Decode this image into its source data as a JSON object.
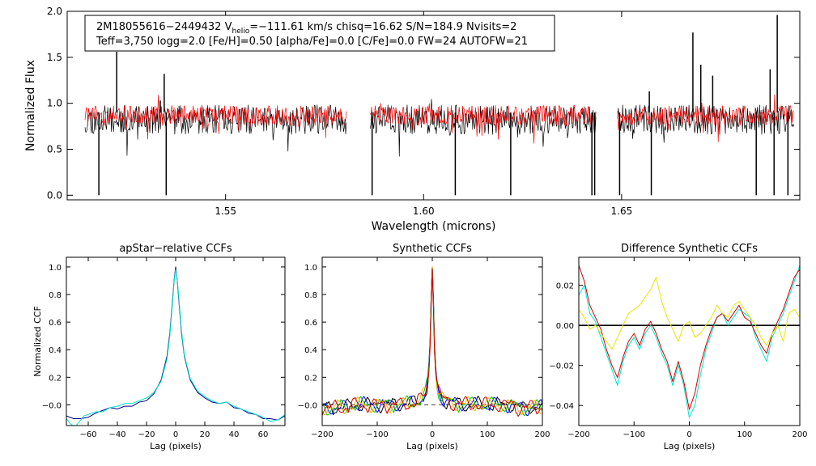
{
  "chart_data": [
    {
      "id": "spectrum",
      "type": "line",
      "title": "",
      "xlabel": "Wavelength (microns)",
      "ylabel": "Normalized Flux",
      "xlim": [
        1.51,
        1.695
      ],
      "ylim": [
        -0.05,
        2.0
      ],
      "xticks": [
        1.55,
        1.6,
        1.65
      ],
      "xtick_labels": [
        "1.55",
        "1.60",
        "1.65"
      ],
      "yticks": [
        0.0,
        0.5,
        1.0,
        1.5,
        2.0
      ],
      "ytick_labels": [
        "0.0",
        "0.5",
        "1.0",
        "1.5",
        "2.0"
      ],
      "annotation": {
        "line1_prefix": "2M18055616−2449432  V",
        "line1_sub": "helio",
        "line1_rest": "=−111.61 km/s  chisq=16.62  S/N=184.9  Nvisits=2",
        "line2": "Teff=3,750 logg=2.0 [Fe/H]=0.50 [alpha/Fe]=0.0 [C/Fe]=0.0 FW=24 AUTOFW=21"
      },
      "chips": [
        [
          1.5145,
          1.5805
        ],
        [
          1.5865,
          1.6435
        ],
        [
          1.649,
          1.6935
        ]
      ],
      "series": [
        {
          "name": "observed",
          "color": "#000000",
          "baseline": 0.87,
          "noise": 0.16
        },
        {
          "name": "synthetic",
          "color": "#ff0000",
          "baseline": 0.9,
          "noise": 0.11
        }
      ],
      "spikes": [
        {
          "x": 1.518,
          "y": 0.0
        },
        {
          "x": 1.5225,
          "y": 1.56
        },
        {
          "x": 1.5335,
          "y": 1.03
        },
        {
          "x": 1.5345,
          "y": 1.32
        },
        {
          "x": 1.535,
          "y": 0.0
        },
        {
          "x": 1.587,
          "y": 0.0
        },
        {
          "x": 1.608,
          "y": 0.0
        },
        {
          "x": 1.622,
          "y": 0.0
        },
        {
          "x": 1.6425,
          "y": 0.0
        },
        {
          "x": 1.6432,
          "y": 0.0
        },
        {
          "x": 1.6495,
          "y": 0.0
        },
        {
          "x": 1.657,
          "y": 1.13
        },
        {
          "x": 1.6575,
          "y": 0.0
        },
        {
          "x": 1.668,
          "y": 1.77
        },
        {
          "x": 1.67,
          "y": 1.42
        },
        {
          "x": 1.673,
          "y": 1.3
        },
        {
          "x": 1.684,
          "y": 0.0
        },
        {
          "x": 1.6875,
          "y": 1.37
        },
        {
          "x": 1.6885,
          "y": 0.0
        },
        {
          "x": 1.6893,
          "y": 1.96
        },
        {
          "x": 1.692,
          "y": 0.0
        }
      ]
    },
    {
      "id": "apstar-ccf",
      "type": "line",
      "title": "apStar−relative CCFs",
      "xlabel": "Lag (pixels)",
      "ylabel": "Normalized CCF",
      "xlim": [
        -75,
        75
      ],
      "ylim": [
        -0.15,
        1.07
      ],
      "xticks": [
        -60,
        -40,
        -20,
        0,
        20,
        40,
        60
      ],
      "xtick_labels": [
        "−60",
        "−40",
        "−20",
        "0",
        "20",
        "40",
        "60"
      ],
      "yticks": [
        0.0,
        0.2,
        0.4,
        0.6,
        0.8,
        1.0
      ],
      "ytick_labels": [
        "−0.0",
        "0.2",
        "0.4",
        "0.6",
        "0.8",
        "1.0"
      ],
      "series": [
        {
          "name": "combined",
          "color": "#000080",
          "x": [
            -75,
            -70,
            -65,
            -60,
            -55,
            -50,
            -45,
            -40,
            -35,
            -30,
            -25,
            -20,
            -15,
            -10,
            -6,
            -4,
            -2,
            -1,
            0,
            1,
            2,
            4,
            6,
            10,
            15,
            20,
            25,
            30,
            35,
            40,
            45,
            50,
            55,
            60,
            65,
            70,
            75
          ],
          "y": [
            -0.08,
            -0.1,
            -0.1,
            -0.09,
            -0.06,
            -0.04,
            -0.02,
            -0.03,
            -0.01,
            -0.01,
            0.02,
            0.03,
            0.08,
            0.18,
            0.35,
            0.52,
            0.78,
            0.91,
            1.0,
            0.91,
            0.78,
            0.52,
            0.35,
            0.18,
            0.09,
            0.05,
            0.02,
            0.01,
            0.02,
            -0.02,
            -0.03,
            -0.06,
            -0.07,
            -0.1,
            -0.1,
            -0.11,
            -0.08
          ]
        },
        {
          "name": "visit",
          "color": "#00e5cc",
          "x": [
            -75,
            -72,
            -69,
            -66,
            -63,
            -60,
            -55,
            -50,
            -45,
            -40,
            -35,
            -30,
            -25,
            -20,
            -15,
            -10,
            -6,
            -4,
            -2,
            -1,
            0,
            1,
            2,
            4,
            6,
            10,
            15,
            20,
            25,
            30,
            35,
            40,
            45,
            50,
            55,
            60,
            65,
            70,
            75
          ],
          "y": [
            -0.1,
            -0.14,
            -0.16,
            -0.12,
            -0.08,
            -0.07,
            -0.05,
            -0.05,
            -0.02,
            -0.01,
            0.01,
            0.01,
            0.03,
            0.05,
            0.09,
            0.17,
            0.33,
            0.5,
            0.76,
            0.9,
            0.98,
            0.92,
            0.8,
            0.54,
            0.36,
            0.19,
            0.1,
            0.06,
            0.03,
            0.01,
            0.02,
            -0.01,
            -0.03,
            -0.05,
            -0.07,
            -0.09,
            -0.12,
            -0.11,
            -0.07
          ]
        }
      ]
    },
    {
      "id": "synthetic-ccf",
      "type": "line",
      "title": "Synthetic CCFs",
      "xlabel": "Lag (pixels)",
      "ylabel": "",
      "xlim": [
        -200,
        200
      ],
      "ylim": [
        -0.15,
        1.07
      ],
      "xticks": [
        -200,
        -100,
        0,
        100,
        200
      ],
      "xtick_labels": [
        "−200",
        "−100",
        "0",
        "100",
        "200"
      ],
      "yticks": [
        0.0,
        0.2,
        0.4,
        0.6,
        0.8,
        1.0
      ],
      "ytick_labels": [
        "−0.0",
        "0.2",
        "0.4",
        "0.6",
        "0.8",
        "1.0"
      ],
      "hline": 0.0,
      "series": [
        {
          "name": "model-1",
          "color": "#000000",
          "seed": 1
        },
        {
          "name": "model-2",
          "color": "#0000ff",
          "seed": 2
        },
        {
          "name": "model-3",
          "color": "#00c800",
          "seed": 3
        },
        {
          "name": "model-4",
          "color": "#ffb000",
          "seed": 4
        },
        {
          "name": "model-5",
          "color": "#c80000",
          "seed": 5
        }
      ]
    },
    {
      "id": "difference-ccf",
      "type": "line",
      "title": "Difference Synthetic CCFs",
      "xlabel": "Lag (pixels)",
      "ylabel": "",
      "xlim": [
        -200,
        200
      ],
      "ylim": [
        -0.05,
        0.034
      ],
      "xticks": [
        -200,
        -100,
        0,
        100,
        200
      ],
      "xtick_labels": [
        "−200",
        "−100",
        "0",
        "100",
        "200"
      ],
      "yticks": [
        -0.04,
        -0.02,
        0.0,
        0.02
      ],
      "ytick_labels": [
        "−0.04",
        "−0.02",
        "0.00",
        "0.02"
      ],
      "hline": 0.0,
      "series": [
        {
          "name": "cyan",
          "color": "#00e5cc",
          "x": [
            -200,
            -190,
            -180,
            -170,
            -160,
            -150,
            -140,
            -130,
            -120,
            -110,
            -100,
            -90,
            -80,
            -70,
            -60,
            -50,
            -40,
            -30,
            -20,
            -10,
            0,
            10,
            20,
            30,
            40,
            50,
            60,
            70,
            80,
            90,
            100,
            110,
            120,
            130,
            140,
            150,
            160,
            170,
            180,
            190,
            200
          ],
          "y": [
            0.015,
            0.02,
            0.006,
            0.002,
            -0.006,
            -0.014,
            -0.022,
            -0.03,
            -0.018,
            -0.01,
            -0.006,
            -0.012,
            -0.004,
            0.0,
            -0.006,
            -0.014,
            -0.02,
            -0.03,
            -0.02,
            -0.03,
            -0.046,
            -0.04,
            -0.025,
            -0.012,
            -0.004,
            0.004,
            0.006,
            0.0,
            0.004,
            0.008,
            0.006,
            0.004,
            -0.006,
            -0.012,
            -0.018,
            -0.006,
            0.0,
            0.006,
            0.014,
            0.022,
            0.03
          ]
        },
        {
          "name": "red",
          "color": "#cc0000",
          "x": [
            -200,
            -190,
            -180,
            -170,
            -160,
            -150,
            -140,
            -130,
            -120,
            -110,
            -100,
            -90,
            -80,
            -70,
            -60,
            -50,
            -40,
            -30,
            -20,
            -10,
            0,
            10,
            20,
            30,
            40,
            50,
            60,
            70,
            80,
            90,
            100,
            110,
            120,
            130,
            140,
            150,
            160,
            170,
            180,
            190,
            200
          ],
          "y": [
            0.03,
            0.022,
            0.01,
            0.004,
            -0.002,
            -0.012,
            -0.02,
            -0.026,
            -0.016,
            -0.008,
            -0.004,
            -0.01,
            -0.002,
            0.002,
            -0.004,
            -0.012,
            -0.018,
            -0.028,
            -0.018,
            -0.028,
            -0.042,
            -0.034,
            -0.02,
            -0.01,
            -0.002,
            0.004,
            0.006,
            0.002,
            0.006,
            0.01,
            0.004,
            0.002,
            -0.004,
            -0.01,
            -0.014,
            -0.004,
            0.002,
            0.008,
            0.016,
            0.024,
            0.028
          ]
        },
        {
          "name": "yellow",
          "color": "#e6e600",
          "x": [
            -200,
            -190,
            -180,
            -170,
            -160,
            -150,
            -140,
            -130,
            -120,
            -110,
            -100,
            -90,
            -80,
            -70,
            -60,
            -50,
            -40,
            -30,
            -20,
            -10,
            0,
            10,
            20,
            30,
            40,
            50,
            60,
            70,
            80,
            90,
            100,
            110,
            120,
            130,
            140,
            150,
            160,
            170,
            180,
            190,
            200
          ],
          "y": [
            0.008,
            0.004,
            -0.002,
            0.0,
            -0.004,
            -0.008,
            -0.012,
            -0.006,
            0.0,
            0.006,
            0.008,
            0.01,
            0.014,
            0.018,
            0.024,
            0.012,
            0.004,
            -0.002,
            -0.008,
            0.0,
            0.002,
            -0.006,
            -0.004,
            0.0,
            0.004,
            0.01,
            0.006,
            0.004,
            0.01,
            0.012,
            0.008,
            0.004,
            0.0,
            -0.006,
            -0.01,
            -0.004,
            0.0,
            -0.008,
            0.006,
            0.008,
            0.004
          ]
        }
      ]
    }
  ]
}
